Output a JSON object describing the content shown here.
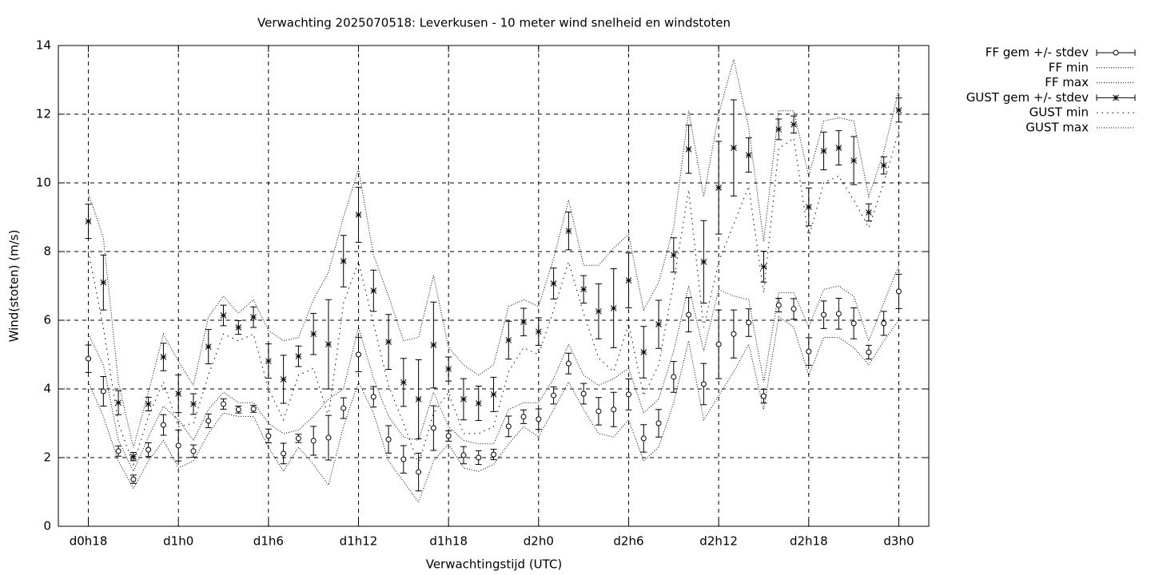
{
  "chart_data": {
    "type": "errorbar-line",
    "title": "Verwachting 2025070518: Leverkusen - 10 meter wind snelheid en windstoten",
    "x_label": "Verwachtingstijd (UTC)",
    "y_label": "Wind(stoten) (m/s)",
    "xlim": [
      16,
      74
    ],
    "ylim": [
      0,
      14
    ],
    "xticks": [
      {
        "value": 18,
        "label": "d0h18"
      },
      {
        "value": 24,
        "label": "d1h0"
      },
      {
        "value": 30,
        "label": "d1h6"
      },
      {
        "value": 36,
        "label": "d1h12"
      },
      {
        "value": 42,
        "label": "d1h18"
      },
      {
        "value": 48,
        "label": "d2h0"
      },
      {
        "value": 54,
        "label": "d2h6"
      },
      {
        "value": 60,
        "label": "d2h12"
      },
      {
        "value": 66,
        "label": "d2h18"
      },
      {
        "value": 72,
        "label": "d3h0"
      }
    ],
    "yticks": [
      0,
      2,
      4,
      6,
      8,
      10,
      12,
      14
    ],
    "grid": true,
    "legend": "outside-right",
    "x": [
      18,
      19,
      20,
      21,
      22,
      23,
      24,
      25,
      26,
      27,
      28,
      29,
      30,
      31,
      32,
      33,
      34,
      35,
      36,
      37,
      38,
      39,
      40,
      41,
      42,
      43,
      44,
      45,
      46,
      47,
      48,
      49,
      50,
      51,
      52,
      53,
      54,
      55,
      56,
      57,
      58,
      59,
      60,
      61,
      62,
      63,
      64,
      65,
      66,
      67,
      68,
      69,
      70,
      71,
      72
    ],
    "series": [
      {
        "name": "FF gem +/- stdev",
        "color": "#000000",
        "marker": "circle",
        "values": [
          4.88,
          3.93,
          2.19,
          1.37,
          2.23,
          2.95,
          2.35,
          2.19,
          3.07,
          3.56,
          3.4,
          3.42,
          2.63,
          2.12,
          2.56,
          2.49,
          2.58,
          3.44,
          5.0,
          3.77,
          2.53,
          1.95,
          1.58,
          2.86,
          2.63,
          2.07,
          2.0,
          2.09,
          2.91,
          3.19,
          3.12,
          3.81,
          4.74,
          3.86,
          3.35,
          3.4,
          3.84,
          2.56,
          3.0,
          4.35,
          6.16,
          4.14,
          5.3,
          5.6,
          5.93,
          3.79,
          6.44,
          6.33,
          5.09,
          6.16,
          6.19,
          5.91,
          5.07,
          5.91,
          6.84
        ],
        "errors": [
          0.4,
          0.43,
          0.15,
          0.12,
          0.2,
          0.3,
          0.45,
          0.18,
          0.2,
          0.15,
          0.1,
          0.1,
          0.2,
          0.3,
          0.12,
          0.42,
          0.65,
          0.3,
          0.5,
          0.3,
          0.4,
          0.4,
          0.55,
          0.65,
          0.15,
          0.25,
          0.2,
          0.15,
          0.3,
          0.2,
          0.3,
          0.25,
          0.3,
          0.3,
          0.4,
          0.5,
          0.45,
          0.4,
          0.4,
          0.45,
          0.5,
          0.6,
          1.0,
          0.7,
          0.4,
          0.2,
          0.2,
          0.3,
          0.4,
          0.4,
          0.45,
          0.45,
          0.2,
          0.35,
          0.5
        ]
      },
      {
        "name": "FF min",
        "color": "#000000",
        "dash": "1,2",
        "values": [
          4.2,
          3.2,
          1.9,
          1.1,
          1.9,
          2.5,
          1.7,
          1.9,
          2.7,
          3.3,
          3.2,
          3.2,
          2.3,
          1.6,
          2.3,
          1.8,
          1.2,
          2.9,
          4.2,
          3.3,
          1.9,
          1.3,
          0.7,
          1.9,
          2.4,
          1.7,
          1.6,
          1.8,
          2.4,
          2.9,
          2.6,
          3.4,
          4.2,
          3.4,
          2.7,
          2.6,
          3.1,
          1.9,
          2.3,
          3.6,
          5.4,
          3.1,
          3.8,
          4.5,
          5.3,
          3.4,
          6.1,
          5.8,
          4.4,
          5.5,
          5.5,
          5.2,
          4.7,
          5.4,
          6.0
        ]
      },
      {
        "name": "FF max",
        "color": "#000000",
        "dash": "1,2",
        "values": [
          5.6,
          4.7,
          2.5,
          1.6,
          2.6,
          3.5,
          3.1,
          2.5,
          3.4,
          3.9,
          3.6,
          3.6,
          3.0,
          2.7,
          2.8,
          3.2,
          3.7,
          4.0,
          5.8,
          4.3,
          3.2,
          2.6,
          2.5,
          3.9,
          2.9,
          2.5,
          2.4,
          2.4,
          3.4,
          3.6,
          3.6,
          4.3,
          5.3,
          4.4,
          4.1,
          4.3,
          4.6,
          3.3,
          3.7,
          5.1,
          7.0,
          5.1,
          6.9,
          6.7,
          6.6,
          4.2,
          6.8,
          6.8,
          5.8,
          6.9,
          7.0,
          6.7,
          5.4,
          6.5,
          7.6
        ]
      },
      {
        "name": "GUST gem +/- stdev",
        "color": "#000000",
        "marker": "star",
        "values": [
          8.88,
          7.1,
          3.6,
          2.03,
          3.56,
          4.93,
          3.86,
          3.56,
          5.23,
          6.14,
          5.79,
          6.09,
          4.81,
          4.28,
          4.95,
          5.6,
          5.3,
          7.72,
          9.07,
          6.86,
          5.37,
          4.19,
          3.7,
          5.28,
          4.58,
          3.7,
          3.58,
          3.84,
          5.42,
          5.95,
          5.67,
          7.07,
          8.6,
          6.9,
          6.26,
          6.35,
          7.16,
          5.07,
          5.88,
          7.9,
          10.98,
          7.7,
          9.86,
          11.02,
          10.81,
          7.56,
          11.56,
          11.7,
          9.3,
          10.93,
          11.02,
          10.65,
          9.14,
          10.51,
          12.12
        ],
        "errors": [
          0.5,
          0.8,
          0.35,
          0.12,
          0.2,
          0.4,
          0.55,
          0.3,
          0.5,
          0.3,
          0.2,
          0.3,
          0.5,
          0.7,
          0.3,
          0.6,
          1.3,
          0.75,
          0.8,
          0.6,
          0.8,
          0.7,
          1.15,
          1.25,
          0.35,
          0.6,
          0.5,
          0.5,
          0.55,
          0.4,
          0.4,
          0.45,
          0.55,
          0.4,
          0.8,
          1.15,
          0.8,
          0.75,
          0.7,
          0.5,
          0.7,
          1.2,
          1.35,
          1.4,
          0.5,
          0.45,
          0.3,
          0.25,
          0.55,
          0.55,
          0.5,
          0.7,
          0.25,
          0.25,
          0.35
        ]
      },
      {
        "name": "GUST min",
        "color": "#000000",
        "dash": "1.5,5",
        "values": [
          8.0,
          5.8,
          3.0,
          1.8,
          3.2,
          4.2,
          2.9,
          3.0,
          4.4,
          5.6,
          5.4,
          5.6,
          4.0,
          3.1,
          4.4,
          4.6,
          3.2,
          6.5,
          7.7,
          5.9,
          4.1,
          3.0,
          1.8,
          3.3,
          3.9,
          2.7,
          2.7,
          2.9,
          4.5,
          5.2,
          5.0,
          6.3,
          7.7,
          6.2,
          4.9,
          4.5,
          5.9,
          3.8,
          4.7,
          7.1,
          9.8,
          5.8,
          7.7,
          8.8,
          9.9,
          6.8,
          11.0,
          11.3,
          8.4,
          10.0,
          10.2,
          9.5,
          8.7,
          10.0,
          11.5
        ]
      },
      {
        "name": "GUST max",
        "color": "#000000",
        "dash": "1,2",
        "values": [
          9.7,
          8.4,
          4.2,
          2.3,
          3.9,
          5.6,
          4.8,
          4.1,
          6.1,
          6.7,
          6.2,
          6.6,
          5.7,
          5.4,
          5.5,
          6.6,
          7.4,
          9.0,
          10.4,
          7.9,
          6.7,
          5.4,
          5.5,
          7.3,
          5.2,
          4.7,
          4.4,
          4.7,
          6.4,
          6.6,
          6.4,
          7.8,
          9.5,
          7.6,
          7.6,
          8.1,
          8.5,
          6.3,
          7.1,
          8.7,
          12.1,
          9.6,
          12.0,
          13.6,
          11.6,
          8.3,
          12.1,
          12.1,
          10.2,
          11.8,
          11.9,
          11.8,
          9.6,
          10.9,
          12.7
        ]
      }
    ]
  }
}
